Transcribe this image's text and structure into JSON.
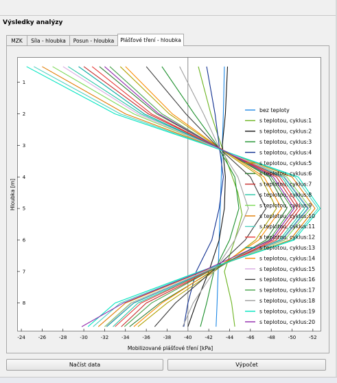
{
  "section_title": "Výsledky analýzy",
  "tabs": [
    {
      "label": "MZK"
    },
    {
      "label": "Síla - hloubka"
    },
    {
      "label": "Posun - hloubka"
    },
    {
      "label": "Plášťové tření - hloubka",
      "active": true
    }
  ],
  "buttons": {
    "load": "Načíst data",
    "compute": "Výpočet"
  },
  "chart_data": {
    "type": "line",
    "title": "",
    "xlabel": "Mobilizované plášťové tření [kPa]",
    "ylabel": "Hloubka [m]",
    "x_axis_reversed": true,
    "xlim": [
      -23.6,
      -52.8
    ],
    "ylim": [
      0.2,
      8.9
    ],
    "y_inverted": true,
    "x_ticks": [
      -24,
      -26,
      -28,
      -30,
      -32,
      -34,
      -36,
      -38,
      -40,
      -42,
      -44,
      -46,
      -48,
      -50,
      -52
    ],
    "y_ticks": [
      1,
      2,
      3,
      4,
      5,
      6,
      7,
      8
    ],
    "reference_line_x": -40,
    "grid": false,
    "legend_position": "right",
    "series": [
      {
        "name": "bez teploty",
        "color": "#1e88e5",
        "points": [
          [
            -43.5,
            0.5
          ],
          [
            -43.4,
            2.0
          ],
          [
            -43.3,
            3.0
          ],
          [
            -43.2,
            4.0
          ],
          [
            -43.1,
            5.0
          ],
          [
            -43.0,
            6.0
          ],
          [
            -42.9,
            7.0
          ],
          [
            -42.8,
            8.0
          ],
          [
            -42.7,
            8.75
          ]
        ]
      },
      {
        "name": "s teplotou, cyklus:1",
        "color": "#6ab31e",
        "points": [
          [
            -41.0,
            0.5
          ],
          [
            -42.2,
            2.0
          ],
          [
            -43.2,
            3.0
          ],
          [
            -44.8,
            4.5
          ],
          [
            -45.2,
            5.2
          ],
          [
            -44.5,
            6.0
          ],
          [
            -43.5,
            7.0
          ],
          [
            -44.2,
            8.0
          ],
          [
            -44.5,
            8.75
          ]
        ]
      },
      {
        "name": "s teplotou, cyklus:2",
        "color": "#111111",
        "points": [
          [
            -43.8,
            0.5
          ],
          [
            -43.6,
            2.0
          ],
          [
            -43.3,
            3.0
          ],
          [
            -43.6,
            4.0
          ],
          [
            -43.5,
            5.0
          ],
          [
            -43.0,
            6.0
          ],
          [
            -42.0,
            7.0
          ],
          [
            -40.8,
            8.0
          ],
          [
            -40.0,
            8.75
          ]
        ]
      },
      {
        "name": "s teplotou, cyklus:3",
        "color": "#1a8f2a",
        "points": [
          [
            -37.5,
            0.5
          ],
          [
            -40.6,
            2.0
          ],
          [
            -42.8,
            3.0
          ],
          [
            -44.5,
            4.0
          ],
          [
            -44.9,
            5.0
          ],
          [
            -44.0,
            6.0
          ],
          [
            -42.5,
            7.0
          ],
          [
            -41.8,
            8.0
          ],
          [
            -41.2,
            8.75
          ]
        ]
      },
      {
        "name": "s teplotou, cyklus:4",
        "color": "#0d2d8f",
        "points": [
          [
            -41.8,
            0.5
          ],
          [
            -42.6,
            2.0
          ],
          [
            -43.0,
            3.0
          ],
          [
            -43.4,
            4.0
          ],
          [
            -43.0,
            5.0
          ],
          [
            -42.3,
            6.0
          ],
          [
            -40.8,
            7.0
          ],
          [
            -40.0,
            8.0
          ],
          [
            -39.6,
            8.75
          ]
        ]
      },
      {
        "name": "s teplotou, cyklus:5",
        "color": "#b0a000",
        "points": [
          [
            -33.5,
            0.5
          ],
          [
            -38.2,
            2.0
          ],
          [
            -42.6,
            3.0
          ],
          [
            -47.0,
            4.0
          ],
          [
            -48.5,
            5.0
          ],
          [
            -46.5,
            6.0
          ],
          [
            -42.5,
            7.0
          ],
          [
            -38.0,
            8.0
          ],
          [
            -35.2,
            8.75
          ]
        ]
      },
      {
        "name": "s teplotou, cyklus:6",
        "color": "#2e7d32",
        "points": [
          [
            -31.5,
            0.5
          ],
          [
            -37.0,
            2.0
          ],
          [
            -42.5,
            3.0
          ],
          [
            -47.8,
            4.0
          ],
          [
            -49.5,
            5.0
          ],
          [
            -47.5,
            6.0
          ],
          [
            -42.3,
            7.0
          ],
          [
            -37.3,
            8.0
          ],
          [
            -34.4,
            8.75
          ]
        ]
      },
      {
        "name": "s teplotou, cyklus:7",
        "color": "#c62828",
        "points": [
          [
            -30.0,
            0.5
          ],
          [
            -36.2,
            2.0
          ],
          [
            -42.4,
            3.0
          ],
          [
            -48.5,
            4.0
          ],
          [
            -50.5,
            5.0
          ],
          [
            -48.2,
            6.0
          ],
          [
            -42.0,
            7.0
          ],
          [
            -36.0,
            8.0
          ],
          [
            -33.6,
            8.75
          ]
        ]
      },
      {
        "name": "s teplotou, cyklus:8",
        "color": "#26c6a6",
        "points": [
          [
            -28.5,
            0.5
          ],
          [
            -35.5,
            2.0
          ],
          [
            -42.3,
            3.0
          ],
          [
            -49.0,
            4.0
          ],
          [
            -51.2,
            5.0
          ],
          [
            -48.8,
            6.0
          ],
          [
            -41.8,
            7.0
          ],
          [
            -35.2,
            8.0
          ],
          [
            -32.8,
            8.75
          ]
        ]
      },
      {
        "name": "s teplotou, cyklus:9",
        "color": "#7cd957",
        "points": [
          [
            -27.0,
            0.5
          ],
          [
            -34.8,
            2.0
          ],
          [
            -42.2,
            3.0
          ],
          [
            -49.5,
            4.0
          ],
          [
            -51.8,
            5.0
          ],
          [
            -49.3,
            6.0
          ],
          [
            -41.6,
            7.0
          ],
          [
            -34.5,
            8.0
          ],
          [
            -32.0,
            8.75
          ]
        ]
      },
      {
        "name": "s teplotou, cyklus:10",
        "color": "#e07a00",
        "points": [
          [
            -26.0,
            0.5
          ],
          [
            -34.0,
            2.0
          ],
          [
            -42.1,
            3.0
          ],
          [
            -50.0,
            4.0
          ],
          [
            -52.2,
            5.0
          ],
          [
            -49.8,
            6.0
          ],
          [
            -41.4,
            7.0
          ],
          [
            -34.0,
            8.0
          ],
          [
            -31.4,
            8.75
          ]
        ]
      },
      {
        "name": "s teplotou, cyklus:11",
        "color": "#4dd0c0",
        "points": [
          [
            -25.2,
            0.5
          ],
          [
            -33.5,
            2.0
          ],
          [
            -42.0,
            3.0
          ],
          [
            -50.3,
            4.0
          ],
          [
            -52.5,
            5.0
          ],
          [
            -50.0,
            6.0
          ],
          [
            -41.2,
            7.0
          ],
          [
            -33.5,
            8.0
          ],
          [
            -30.9,
            8.75
          ]
        ]
      },
      {
        "name": "s teplotou, cyklus:12",
        "color": "#e53935",
        "points": [
          [
            -30.8,
            0.5
          ],
          [
            -36.5,
            2.0
          ],
          [
            -42.4,
            3.0
          ],
          [
            -48.8,
            4.0
          ],
          [
            -50.8,
            5.0
          ],
          [
            -48.5,
            6.0
          ],
          [
            -41.9,
            7.0
          ],
          [
            -35.5,
            8.0
          ],
          [
            -33.0,
            8.75
          ]
        ]
      },
      {
        "name": "s teplotou, cyklus:13",
        "color": "#00a6a0",
        "points": [
          [
            -29.5,
            0.5
          ],
          [
            -35.8,
            2.0
          ],
          [
            -42.3,
            3.0
          ],
          [
            -49.2,
            4.0
          ],
          [
            -51.5,
            5.0
          ],
          [
            -49.0,
            6.0
          ],
          [
            -41.7,
            7.0
          ],
          [
            -34.8,
            8.0
          ],
          [
            -32.2,
            8.75
          ]
        ]
      },
      {
        "name": "s teplotou, cyklus:14",
        "color": "#fb8c00",
        "points": [
          [
            -34.0,
            0.5
          ],
          [
            -38.5,
            2.0
          ],
          [
            -42.7,
            3.0
          ],
          [
            -47.3,
            4.0
          ],
          [
            -49.0,
            5.0
          ],
          [
            -46.8,
            6.0
          ],
          [
            -42.2,
            7.0
          ],
          [
            -37.5,
            8.0
          ],
          [
            -34.8,
            8.75
          ]
        ]
      },
      {
        "name": "s teplotou, cyklus:15",
        "color": "#d8a8e0",
        "points": [
          [
            -28.0,
            0.5
          ],
          [
            -35.2,
            2.0
          ],
          [
            -42.2,
            3.0
          ],
          [
            -49.3,
            4.0
          ],
          [
            -51.6,
            5.0
          ],
          [
            -49.1,
            6.0
          ],
          [
            -41.6,
            7.0
          ],
          [
            -34.6,
            8.0
          ],
          [
            -32.1,
            8.75
          ]
        ]
      },
      {
        "name": "s teplotou, cyklus:16",
        "color": "#3a3a3a",
        "points": [
          [
            -36.0,
            0.5
          ],
          [
            -39.8,
            2.0
          ],
          [
            -42.7,
            3.0
          ],
          [
            -46.0,
            4.0
          ],
          [
            -47.5,
            5.0
          ],
          [
            -45.5,
            6.0
          ],
          [
            -42.3,
            7.0
          ],
          [
            -38.8,
            8.0
          ],
          [
            -36.8,
            8.75
          ]
        ]
      },
      {
        "name": "s teplotou, cyklus:17",
        "color": "#43a047",
        "points": [
          [
            -32.5,
            0.5
          ],
          [
            -37.5,
            2.0
          ],
          [
            -42.5,
            3.0
          ],
          [
            -48.0,
            4.0
          ],
          [
            -50.0,
            5.0
          ],
          [
            -47.8,
            6.0
          ],
          [
            -42.0,
            7.0
          ],
          [
            -36.5,
            8.0
          ],
          [
            -33.9,
            8.75
          ]
        ]
      },
      {
        "name": "s teplotou, cyklus:18",
        "color": "#9e9e9e",
        "points": [
          [
            -39.2,
            0.5
          ],
          [
            -41.5,
            2.0
          ],
          [
            -42.9,
            3.0
          ],
          [
            -44.8,
            4.0
          ],
          [
            -45.8,
            5.0
          ],
          [
            -44.5,
            6.0
          ],
          [
            -42.5,
            7.0
          ],
          [
            -40.5,
            8.0
          ],
          [
            -39.5,
            8.75
          ]
        ]
      },
      {
        "name": "s teplotou, cyklus:19",
        "color": "#00e5c0",
        "points": [
          [
            -24.5,
            0.5
          ],
          [
            -33.0,
            2.0
          ],
          [
            -41.9,
            3.0
          ],
          [
            -50.6,
            4.0
          ],
          [
            -52.7,
            5.0
          ],
          [
            -50.2,
            6.0
          ],
          [
            -41.1,
            7.0
          ],
          [
            -33.0,
            8.0
          ],
          [
            -30.4,
            8.75
          ]
        ]
      },
      {
        "name": "s teplotou, cyklus:20",
        "color": "#8e24aa",
        "points": [
          [
            -32.0,
            0.5
          ],
          [
            -37.2,
            2.0
          ],
          [
            -42.5,
            3.0
          ],
          [
            -48.2,
            4.0
          ],
          [
            -50.2,
            5.0
          ],
          [
            -48.0,
            6.0
          ],
          [
            -41.3,
            7.0
          ],
          [
            -33.8,
            8.0
          ],
          [
            -29.8,
            8.75
          ]
        ]
      }
    ]
  }
}
